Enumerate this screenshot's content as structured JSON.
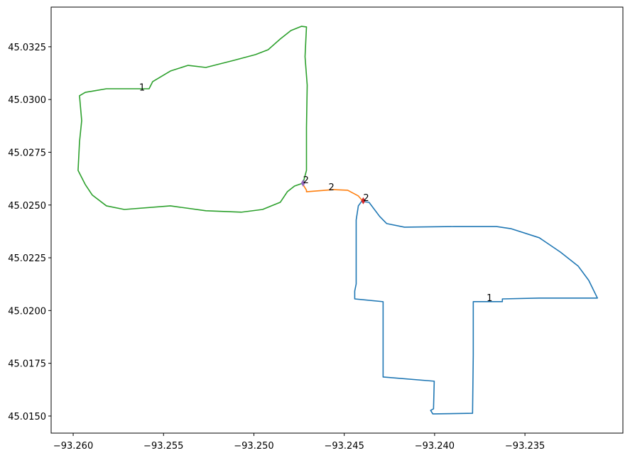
{
  "chart_data": {
    "type": "line",
    "xlim": [
      -93.26122,
      -93.22958
    ],
    "ylim": [
      45.01419,
      45.03438
    ],
    "xticks": [
      {
        "value": -93.26,
        "label": "−93.260"
      },
      {
        "value": -93.255,
        "label": "−93.255"
      },
      {
        "value": -93.25,
        "label": "−93.250"
      },
      {
        "value": -93.245,
        "label": "−93.245"
      },
      {
        "value": -93.24,
        "label": "−93.240"
      },
      {
        "value": -93.235,
        "label": "−93.235"
      }
    ],
    "yticks": [
      {
        "value": 45.015,
        "label": "45.0150"
      },
      {
        "value": 45.0175,
        "label": "45.0175"
      },
      {
        "value": 45.02,
        "label": "45.0200"
      },
      {
        "value": 45.0225,
        "label": "45.0225"
      },
      {
        "value": 45.025,
        "label": "45.0250"
      },
      {
        "value": 45.0275,
        "label": "45.0275"
      },
      {
        "value": 45.03,
        "label": "45.0300"
      },
      {
        "value": 45.0325,
        "label": "45.0325"
      }
    ],
    "series": [
      {
        "color": "#1f77b4",
        "x": [
          -93.24395,
          -93.24363,
          -93.24304,
          -93.24265,
          -93.24167,
          -93.23892,
          -93.23657,
          -93.23578,
          -93.23421,
          -93.23304,
          -93.23205,
          -93.23147,
          -93.23099,
          -93.23421,
          -93.23625,
          -93.23625,
          -93.23786,
          -93.23786,
          -93.2379,
          -93.2401,
          -93.24022,
          -93.24006,
          -93.24002,
          -93.24285,
          -93.24285,
          -93.24442,
          -93.24442,
          -93.24434,
          -93.24434,
          -93.24422,
          -93.24399
        ],
        "y": [
          45.02516,
          45.02513,
          45.02446,
          45.02412,
          45.02395,
          45.02398,
          45.02398,
          45.02388,
          45.02345,
          45.02277,
          45.0221,
          45.02143,
          45.02059,
          45.02059,
          45.02055,
          45.02042,
          45.02042,
          45.01789,
          45.01513,
          45.0151,
          45.01527,
          45.01534,
          45.01665,
          45.01685,
          45.02042,
          45.02055,
          45.02092,
          45.02126,
          45.02429,
          45.02496,
          45.02523
        ]
      },
      {
        "color": "#ff7f0e",
        "x": [
          -93.24728,
          -93.24709,
          -93.24709,
          -93.2456,
          -93.24481,
          -93.24422,
          -93.24395
        ],
        "y": [
          45.02597,
          45.0257,
          45.02563,
          45.02573,
          45.0257,
          45.02543,
          45.02516
        ]
      },
      {
        "color": "#2ca02c",
        "x": [
          -93.24728,
          -93.24709,
          -93.24709,
          -93.24705,
          -93.24717,
          -93.24709,
          -93.24736,
          -93.24795,
          -93.24854,
          -93.24921,
          -93.24991,
          -93.25109,
          -93.25266,
          -93.25364,
          -93.25462,
          -93.2556,
          -93.2558,
          -93.25698,
          -93.25816,
          -93.25933,
          -93.25965,
          -93.25953,
          -93.25965,
          -93.25973,
          -93.25933,
          -93.25894,
          -93.25816,
          -93.25717,
          -93.25462,
          -93.25266,
          -93.2507,
          -93.24952,
          -93.24854,
          -93.24815,
          -93.24775,
          -93.24728
        ],
        "y": [
          45.02604,
          45.02664,
          45.02866,
          45.03068,
          45.03203,
          45.03344,
          45.03347,
          45.03327,
          45.03287,
          45.03236,
          45.03213,
          45.03186,
          45.03152,
          45.03162,
          45.03135,
          45.03085,
          45.03051,
          45.03051,
          45.03051,
          45.03034,
          45.03018,
          45.029,
          45.02799,
          45.02664,
          45.02597,
          45.02547,
          45.02496,
          45.02479,
          45.02496,
          45.02473,
          45.02466,
          45.02479,
          45.02513,
          45.02563,
          45.0259,
          45.02604
        ]
      }
    ],
    "markers": [
      {
        "x": -93.24728,
        "y": 45.02604,
        "color": "#9467bd"
      },
      {
        "x": -93.24395,
        "y": 45.0252,
        "color": "#d62728"
      }
    ],
    "annotations": [
      {
        "text": "1",
        "x": -93.25635,
        "y": 45.03043
      },
      {
        "text": "2",
        "x": -93.24728,
        "y": 45.02604
      },
      {
        "text": "2",
        "x": -93.24587,
        "y": 45.0257
      },
      {
        "text": "2",
        "x": -93.24395,
        "y": 45.0252
      },
      {
        "text": "1",
        "x": -93.23712,
        "y": 45.02045
      }
    ]
  }
}
